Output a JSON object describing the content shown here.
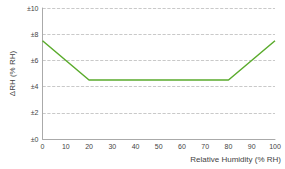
{
  "chart_data": {
    "type": "line",
    "x_label": "Relative Humidity (% RH)",
    "y_label": "ΔRH (% RH)",
    "x": [
      0,
      20,
      80,
      100
    ],
    "values": [
      7.5,
      4.5,
      4.5,
      7.5
    ],
    "color": "#5aab2c",
    "xlim": [
      0,
      100
    ],
    "xticks": [
      0,
      10,
      20,
      30,
      40,
      50,
      60,
      70,
      80,
      90,
      100
    ],
    "ylim": [
      0,
      10
    ],
    "yticks": [
      {
        "value": 0,
        "label": "±0"
      },
      {
        "value": 2,
        "label": "±2"
      },
      {
        "value": 4,
        "label": "±4"
      },
      {
        "value": 6,
        "label": "±6"
      },
      {
        "value": 8,
        "label": "±8"
      },
      {
        "value": 10,
        "label": "±10"
      }
    ],
    "grid": true
  }
}
